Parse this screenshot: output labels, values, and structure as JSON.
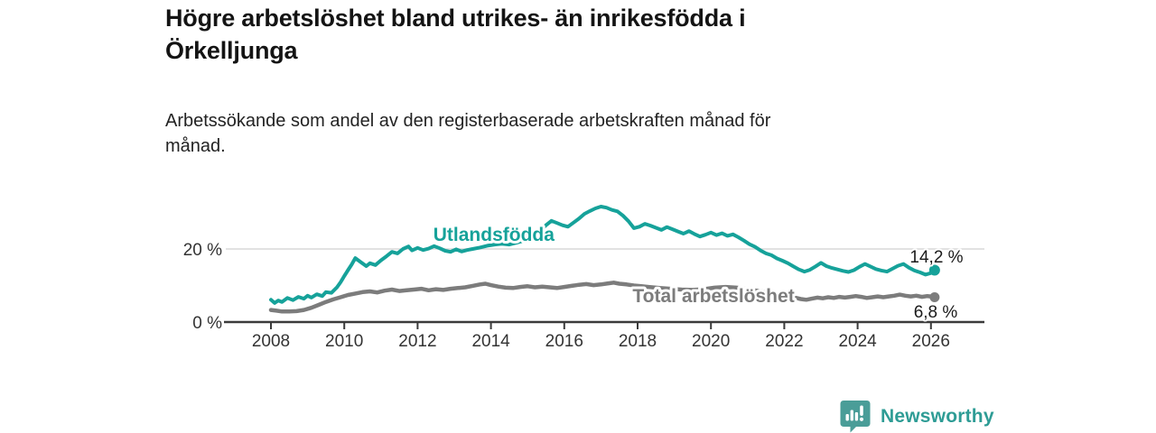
{
  "title_lines": [
    "Högre arbetslöshet bland utrikes- än inrikesfödda i",
    "Örkelljunga"
  ],
  "subtitle_lines": [
    "Arbetssökande som andel av den registerbaserade arbetskraften månad för",
    "månad."
  ],
  "chart_data": {
    "type": "line",
    "title": "Högre arbetslöshet bland utrikes- än inrikesfödda i Örkelljunga",
    "subtitle": "Arbetssökande som andel av den registerbaserade arbetskraften månad för månad.",
    "xlabel": "",
    "ylabel": "",
    "grid": "y-20-only",
    "legend_position": "inline-labels",
    "x_axis": {
      "ticks": [
        2008,
        2010,
        2012,
        2014,
        2016,
        2018,
        2020,
        2022,
        2024,
        2026
      ],
      "range": [
        2007.0,
        2027.5
      ]
    },
    "y_axis": {
      "ticks": [
        {
          "value": 0,
          "label": "0 %"
        },
        {
          "value": 20,
          "label": "20 %"
        }
      ],
      "range": [
        0,
        33
      ],
      "unit": "%"
    },
    "series": [
      {
        "name": "Utlandsfödda",
        "color": "#16a29a",
        "end_value": 14.2,
        "end_label": "14,2 %",
        "label_anchor": [
          2014.08,
          22.2
        ],
        "points": [
          [
            2008.0,
            6.1
          ],
          [
            2008.1,
            5.2
          ],
          [
            2008.2,
            5.9
          ],
          [
            2008.3,
            5.5
          ],
          [
            2008.45,
            6.6
          ],
          [
            2008.6,
            6.0
          ],
          [
            2008.75,
            6.9
          ],
          [
            2008.9,
            6.4
          ],
          [
            2009.0,
            7.2
          ],
          [
            2009.1,
            6.7
          ],
          [
            2009.25,
            7.6
          ],
          [
            2009.4,
            7.1
          ],
          [
            2009.5,
            8.2
          ],
          [
            2009.65,
            8.0
          ],
          [
            2009.8,
            9.5
          ],
          [
            2009.9,
            10.9
          ],
          [
            2010.0,
            12.6
          ],
          [
            2010.1,
            14.2
          ],
          [
            2010.2,
            15.7
          ],
          [
            2010.3,
            17.5
          ],
          [
            2010.45,
            16.4
          ],
          [
            2010.6,
            15.3
          ],
          [
            2010.7,
            16.1
          ],
          [
            2010.85,
            15.6
          ],
          [
            2011.0,
            16.9
          ],
          [
            2011.15,
            18.0
          ],
          [
            2011.3,
            19.2
          ],
          [
            2011.45,
            18.8
          ],
          [
            2011.6,
            20.0
          ],
          [
            2011.75,
            20.7
          ],
          [
            2011.85,
            19.6
          ],
          [
            2012.0,
            20.3
          ],
          [
            2012.15,
            19.7
          ],
          [
            2012.3,
            20.1
          ],
          [
            2012.45,
            20.8
          ],
          [
            2012.6,
            20.2
          ],
          [
            2012.75,
            19.5
          ],
          [
            2012.9,
            19.2
          ],
          [
            2013.05,
            19.9
          ],
          [
            2013.2,
            19.3
          ],
          [
            2013.35,
            19.7
          ],
          [
            2013.5,
            20.0
          ],
          [
            2013.7,
            20.4
          ],
          [
            2013.9,
            20.9
          ],
          [
            2014.1,
            21.2
          ],
          [
            2014.3,
            21.4
          ],
          [
            2014.5,
            21.2
          ],
          [
            2014.7,
            21.7
          ],
          [
            2014.9,
            22.3
          ],
          [
            2015.1,
            23.2
          ],
          [
            2015.3,
            24.6
          ],
          [
            2015.5,
            26.5
          ],
          [
            2015.65,
            27.7
          ],
          [
            2015.8,
            27.1
          ],
          [
            2015.95,
            26.5
          ],
          [
            2016.1,
            26.1
          ],
          [
            2016.25,
            27.2
          ],
          [
            2016.4,
            28.3
          ],
          [
            2016.55,
            29.6
          ],
          [
            2016.7,
            30.4
          ],
          [
            2016.85,
            31.1
          ],
          [
            2017.0,
            31.6
          ],
          [
            2017.15,
            31.3
          ],
          [
            2017.3,
            30.7
          ],
          [
            2017.45,
            30.3
          ],
          [
            2017.6,
            29.1
          ],
          [
            2017.75,
            27.6
          ],
          [
            2017.9,
            25.7
          ],
          [
            2018.05,
            26.1
          ],
          [
            2018.2,
            26.9
          ],
          [
            2018.35,
            26.4
          ],
          [
            2018.5,
            25.8
          ],
          [
            2018.65,
            25.2
          ],
          [
            2018.8,
            26.0
          ],
          [
            2018.95,
            25.4
          ],
          [
            2019.1,
            24.8
          ],
          [
            2019.25,
            24.2
          ],
          [
            2019.4,
            24.9
          ],
          [
            2019.55,
            24.1
          ],
          [
            2019.7,
            23.4
          ],
          [
            2019.85,
            23.9
          ],
          [
            2020.0,
            24.5
          ],
          [
            2020.15,
            23.8
          ],
          [
            2020.3,
            24.3
          ],
          [
            2020.45,
            23.6
          ],
          [
            2020.6,
            24.0
          ],
          [
            2020.75,
            23.2
          ],
          [
            2020.9,
            22.3
          ],
          [
            2021.05,
            21.3
          ],
          [
            2021.2,
            20.6
          ],
          [
            2021.35,
            19.6
          ],
          [
            2021.5,
            18.8
          ],
          [
            2021.65,
            18.3
          ],
          [
            2021.8,
            17.4
          ],
          [
            2021.95,
            16.8
          ],
          [
            2022.1,
            16.1
          ],
          [
            2022.25,
            15.2
          ],
          [
            2022.4,
            14.4
          ],
          [
            2022.55,
            13.8
          ],
          [
            2022.7,
            14.3
          ],
          [
            2022.85,
            15.2
          ],
          [
            2023.0,
            16.2
          ],
          [
            2023.15,
            15.3
          ],
          [
            2023.3,
            14.8
          ],
          [
            2023.45,
            14.4
          ],
          [
            2023.6,
            14.0
          ],
          [
            2023.75,
            13.7
          ],
          [
            2023.9,
            14.2
          ],
          [
            2024.05,
            15.1
          ],
          [
            2024.2,
            15.9
          ],
          [
            2024.35,
            15.2
          ],
          [
            2024.5,
            14.5
          ],
          [
            2024.65,
            14.1
          ],
          [
            2024.8,
            13.8
          ],
          [
            2024.95,
            14.6
          ],
          [
            2025.1,
            15.4
          ],
          [
            2025.25,
            15.9
          ],
          [
            2025.4,
            14.9
          ],
          [
            2025.55,
            14.1
          ],
          [
            2025.7,
            13.6
          ],
          [
            2025.85,
            13.0
          ],
          [
            2026.0,
            13.4
          ],
          [
            2026.1,
            14.2
          ]
        ]
      },
      {
        "name": "Total arbetslöshet",
        "color": "#7c7c7c",
        "end_value": 6.8,
        "end_label": "6,8 %",
        "label_anchor": [
          2020.07,
          5.4
        ],
        "points": [
          [
            2008.0,
            3.3
          ],
          [
            2008.15,
            3.1
          ],
          [
            2008.3,
            2.9
          ],
          [
            2008.5,
            2.9
          ],
          [
            2008.7,
            3.0
          ],
          [
            2008.9,
            3.3
          ],
          [
            2009.1,
            3.9
          ],
          [
            2009.3,
            4.7
          ],
          [
            2009.5,
            5.5
          ],
          [
            2009.7,
            6.2
          ],
          [
            2009.9,
            6.8
          ],
          [
            2010.1,
            7.4
          ],
          [
            2010.3,
            7.8
          ],
          [
            2010.5,
            8.2
          ],
          [
            2010.7,
            8.4
          ],
          [
            2010.9,
            8.1
          ],
          [
            2011.1,
            8.6
          ],
          [
            2011.3,
            8.9
          ],
          [
            2011.5,
            8.5
          ],
          [
            2011.7,
            8.7
          ],
          [
            2011.9,
            8.9
          ],
          [
            2012.1,
            9.1
          ],
          [
            2012.3,
            8.7
          ],
          [
            2012.5,
            9.0
          ],
          [
            2012.7,
            8.8
          ],
          [
            2012.9,
            9.1
          ],
          [
            2013.1,
            9.3
          ],
          [
            2013.3,
            9.5
          ],
          [
            2013.5,
            9.9
          ],
          [
            2013.7,
            10.3
          ],
          [
            2013.85,
            10.5
          ],
          [
            2014.0,
            10.1
          ],
          [
            2014.2,
            9.7
          ],
          [
            2014.4,
            9.4
          ],
          [
            2014.6,
            9.3
          ],
          [
            2014.8,
            9.6
          ],
          [
            2015.0,
            9.8
          ],
          [
            2015.2,
            9.5
          ],
          [
            2015.4,
            9.7
          ],
          [
            2015.6,
            9.5
          ],
          [
            2015.8,
            9.3
          ],
          [
            2016.0,
            9.6
          ],
          [
            2016.2,
            9.9
          ],
          [
            2016.4,
            10.2
          ],
          [
            2016.6,
            10.4
          ],
          [
            2016.8,
            10.1
          ],
          [
            2017.0,
            10.3
          ],
          [
            2017.2,
            10.6
          ],
          [
            2017.35,
            10.8
          ],
          [
            2017.5,
            10.5
          ],
          [
            2017.7,
            10.3
          ],
          [
            2017.9,
            10.0
          ],
          [
            2018.1,
            9.8
          ],
          [
            2018.3,
            9.6
          ],
          [
            2018.6,
            9.3
          ],
          [
            2018.9,
            9.1
          ],
          [
            2019.2,
            8.9
          ],
          [
            2019.5,
            8.8
          ],
          [
            2019.8,
            9.0
          ],
          [
            2020.1,
            9.4
          ],
          [
            2020.4,
            9.6
          ],
          [
            2020.7,
            9.4
          ],
          [
            2021.0,
            9.0
          ],
          [
            2021.3,
            8.5
          ],
          [
            2021.6,
            8.1
          ],
          [
            2021.9,
            7.5
          ],
          [
            2022.2,
            6.9
          ],
          [
            2022.45,
            6.3
          ],
          [
            2022.6,
            6.1
          ],
          [
            2022.75,
            6.4
          ],
          [
            2022.9,
            6.7
          ],
          [
            2023.05,
            6.5
          ],
          [
            2023.2,
            6.8
          ],
          [
            2023.35,
            6.6
          ],
          [
            2023.5,
            6.9
          ],
          [
            2023.65,
            6.7
          ],
          [
            2023.8,
            6.9
          ],
          [
            2023.95,
            7.1
          ],
          [
            2024.1,
            6.9
          ],
          [
            2024.25,
            6.6
          ],
          [
            2024.4,
            6.8
          ],
          [
            2024.55,
            7.0
          ],
          [
            2024.7,
            6.8
          ],
          [
            2024.85,
            7.0
          ],
          [
            2025.0,
            7.2
          ],
          [
            2025.15,
            7.5
          ],
          [
            2025.3,
            7.2
          ],
          [
            2025.45,
            7.0
          ],
          [
            2025.6,
            7.2
          ],
          [
            2025.75,
            6.9
          ],
          [
            2025.9,
            7.1
          ],
          [
            2026.0,
            7.0
          ],
          [
            2026.1,
            6.8
          ]
        ]
      }
    ]
  },
  "colors": {
    "accent_teal": "#16a29a",
    "series_gray": "#7c7c7c",
    "axis": "#3b3b3b",
    "gridline": "#d8d8d8",
    "logo_teal": "#4a9d98",
    "logo_text_teal": "#2e9c95"
  },
  "branding": {
    "logo_text": "Newsworthy",
    "logo_icon": "bar-chart-speech-bubble-icon"
  }
}
